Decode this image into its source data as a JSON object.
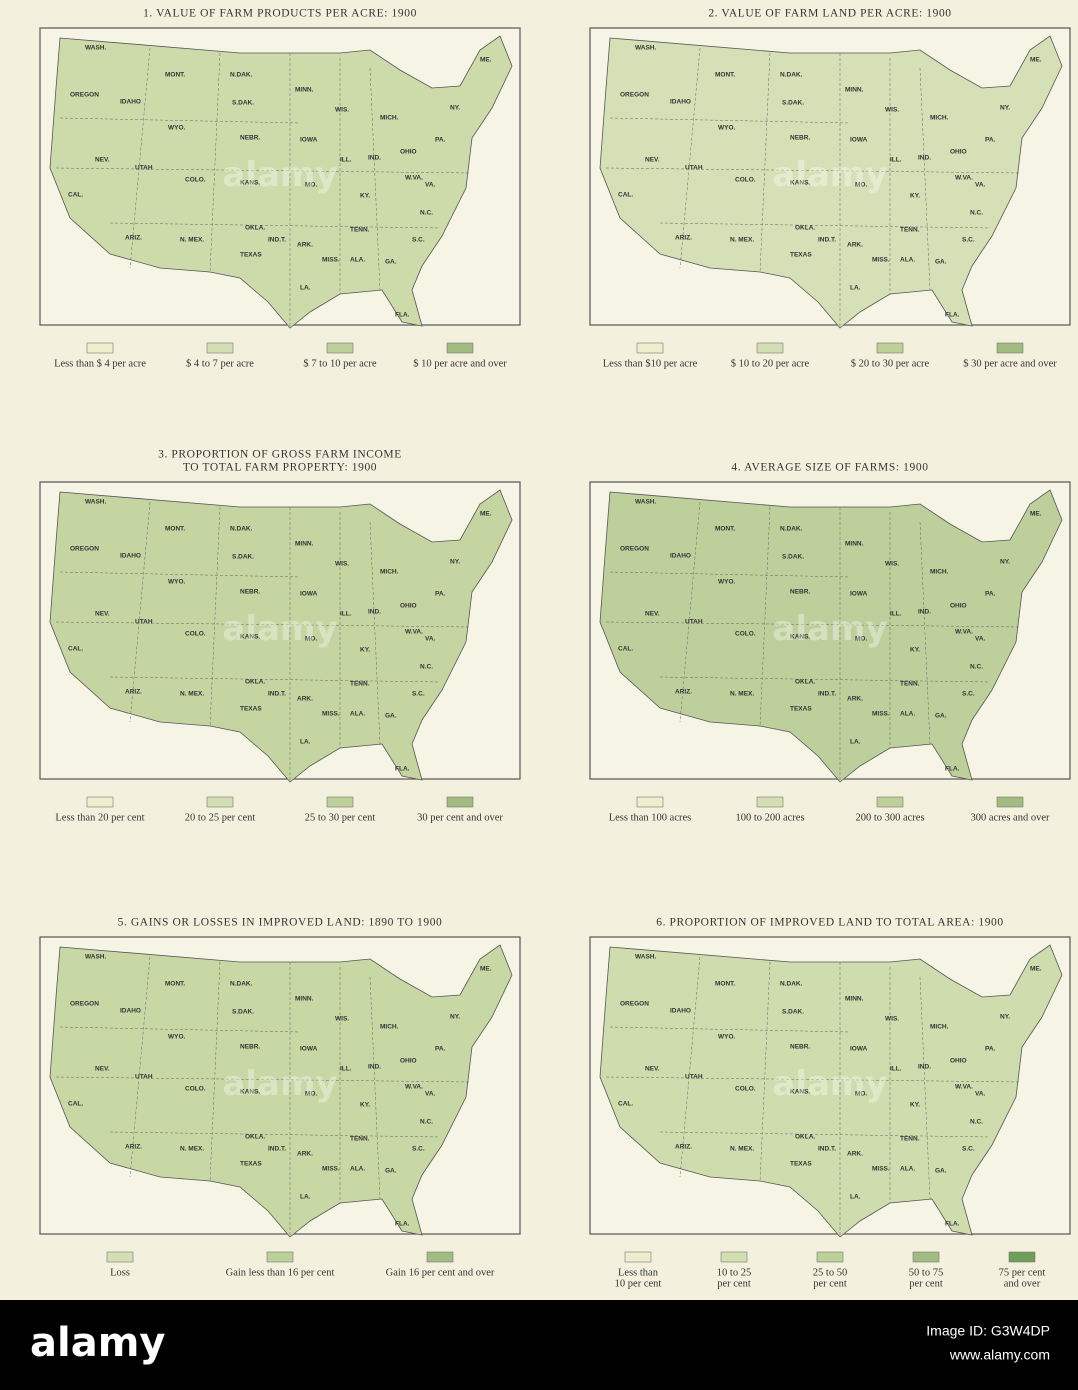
{
  "maps": [
    {
      "title": [
        "1. VALUE OF FARM PRODUCTS PER ACRE: 1900"
      ],
      "legend": [
        [
          "Less than $ 4 per acre"
        ],
        [
          "$ 4 to 7 per acre"
        ],
        [
          "$ 7 to 10 per acre"
        ],
        [
          "$ 10 per acre and over"
        ]
      ]
    },
    {
      "title": [
        "2. VALUE OF FARM LAND PER ACRE: 1900"
      ],
      "legend": [
        [
          "Less than $10 per acre"
        ],
        [
          "$ 10 to 20 per acre"
        ],
        [
          "$ 20 to 30 per acre"
        ],
        [
          "$ 30 per acre and over"
        ]
      ]
    },
    {
      "title": [
        "3. PROPORTION OF GROSS FARM INCOME",
        "TO TOTAL FARM PROPERTY: 1900"
      ],
      "legend": [
        [
          "Less than 20 per cent"
        ],
        [
          "20 to 25 per cent"
        ],
        [
          "25 to 30 per cent"
        ],
        [
          "30 per cent and over"
        ]
      ]
    },
    {
      "title": [
        "4. AVERAGE SIZE OF FARMS: 1900"
      ],
      "legend": [
        [
          "Less than 100 acres"
        ],
        [
          "100 to 200 acres"
        ],
        [
          "200 to 300 acres"
        ],
        [
          "300 acres and over"
        ]
      ]
    },
    {
      "title": [
        "5. GAINS OR LOSSES IN IMPROVED LAND: 1890 TO 1900"
      ],
      "legend": [
        [
          "Loss"
        ],
        [
          "Gain less than 16 per cent"
        ],
        [
          "Gain 16 per cent and over"
        ]
      ]
    },
    {
      "title": [
        "6. PROPORTION OF IMPROVED LAND TO TOTAL AREA: 1900"
      ],
      "legend": [
        [
          "Less than",
          "10 per cent"
        ],
        [
          "10 to 25",
          "per cent"
        ],
        [
          "25 to 50",
          "per cent"
        ],
        [
          "50 to 75",
          "per cent"
        ],
        [
          "75 per cent",
          "and over"
        ]
      ]
    }
  ],
  "state_labels": [
    "WASH.",
    "OREGON",
    "IDAHO",
    "MONT.",
    "WYO.",
    "NEV.",
    "CAL.",
    "UTAH",
    "COLO.",
    "ARIZ.",
    "N. MEX.",
    "N.DAK.",
    "S.DAK.",
    "NEBR.",
    "KANS.",
    "OKLA.",
    "IND.T.",
    "TEXAS",
    "MINN.",
    "IOWA",
    "MO.",
    "ARK.",
    "LA.",
    "WIS.",
    "ILL.",
    "MISS.",
    "ALA.",
    "TENN.",
    "KY.",
    "MICH.",
    "IND.",
    "OHIO",
    "GA.",
    "FLA.",
    "S.C.",
    "N.C.",
    "VA.",
    "W.VA.",
    "PA.",
    "NY.",
    "ME."
  ],
  "watermark": "alamy",
  "footer": {
    "brand": "alamy",
    "image_id": "Image ID: G3W4DP",
    "url": "www.alamy.com"
  }
}
